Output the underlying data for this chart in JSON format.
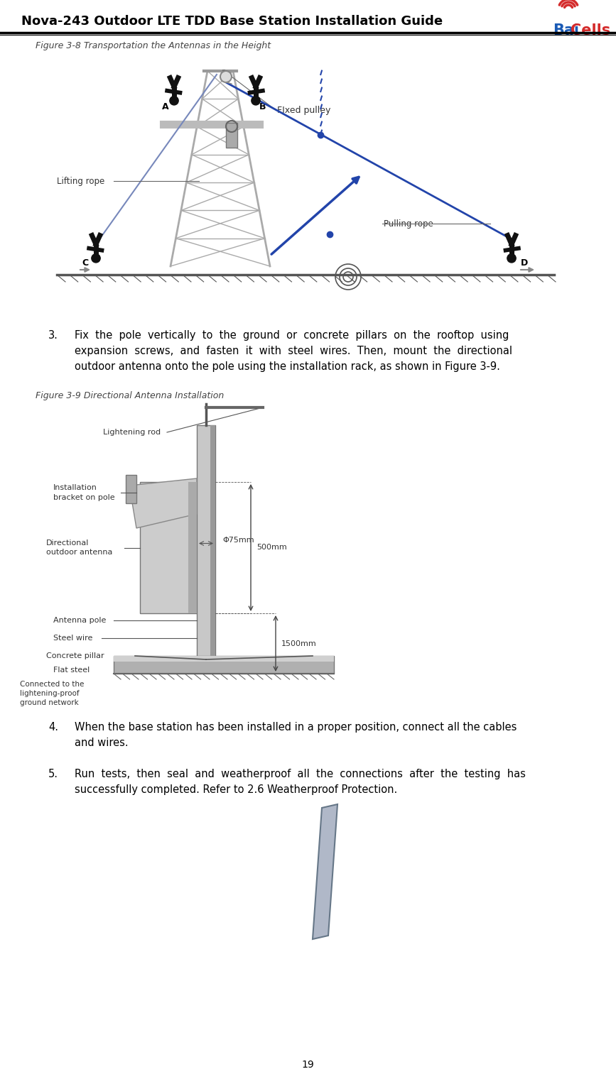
{
  "header_title": "Nova-243 Outdoor LTE TDD Base Station Installation Guide",
  "header_title_fontsize": 13,
  "fig3_8_caption": "Figure 3-8 Transportation the Antennas in the Height",
  "fig3_9_caption": "Figure 3-9 Directional Antenna Installation",
  "caption_fontsize": 9,
  "step3_lines": [
    "Fix  the  pole  vertically  to  the  ground  or  concrete  pillars  on  the  rooftop  using",
    "expansion  screws,  and  fasten  it  with  steel  wires.  Then,  mount  the  directional",
    "outdoor antenna onto the pole using the installation rack, as shown in Figure 3-9."
  ],
  "step4_lines": [
    "When the base station has been installed in a proper position, connect all the cables",
    "and wires."
  ],
  "step5_lines": [
    "Run  tests,  then  seal  and  weatherproof  all  the  connections  after  the  testing  has",
    "successfully completed. Refer to 2.6 Weatherproof Protection."
  ],
  "body_fontsize": 10.5,
  "page_number": "19",
  "background_color": "#ffffff",
  "text_color": "#000000",
  "header_separator_color": "#000000",
  "logo_blue": "#1a5ab5",
  "logo_red": "#d42b2b",
  "label_color": "#333333",
  "tower_color": "#888888",
  "rope_color": "#2244aa",
  "ground_color": "#666666"
}
